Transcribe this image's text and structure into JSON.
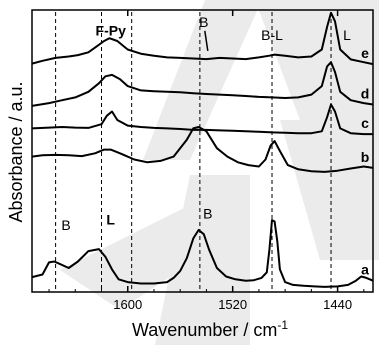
{
  "chart_data": {
    "type": "line",
    "xlabel": "Wavenumber / cm",
    "xlabel_sup": "-1",
    "ylabel": "Absorbance / a.u.",
    "xlim": [
      1673,
      1413
    ],
    "x_reversed": true,
    "xticks": [
      {
        "value": 1600,
        "label": "1600"
      },
      {
        "value": 1520,
        "label": "1520"
      },
      {
        "value": 1440,
        "label": "1440"
      }
    ],
    "reference_lines": [
      {
        "x": 1655,
        "label": ""
      },
      {
        "x": 1620,
        "label": ""
      },
      {
        "x": 1597,
        "label": ""
      },
      {
        "x": 1545,
        "label": ""
      },
      {
        "x": 1490,
        "label": "B-L"
      },
      {
        "x": 1445,
        "label": "L"
      }
    ],
    "annotations": [
      {
        "text": "F-Py",
        "x": 1613,
        "level": 0.91,
        "bold": true
      },
      {
        "text": "B",
        "x": 1542,
        "level": 0.94,
        "bold": false,
        "arrow": true
      },
      {
        "text": "B",
        "x": 1647,
        "level": 0.22,
        "bold": false
      },
      {
        "text": "L",
        "x": 1613,
        "level": 0.24,
        "bold": true
      },
      {
        "text": "B",
        "x": 1539,
        "level": 0.26,
        "bold": false
      }
    ],
    "series": [
      {
        "name": "a",
        "x": [
          1673,
          1665,
          1660,
          1656,
          1652,
          1645,
          1638,
          1630,
          1622,
          1617,
          1612,
          1607,
          1600,
          1590,
          1580,
          1570,
          1565,
          1560,
          1555,
          1550,
          1546,
          1542,
          1538,
          1532,
          1525,
          1518,
          1510,
          1504,
          1498,
          1494,
          1492,
          1490,
          1488,
          1486,
          1484,
          1480,
          1474,
          1466,
          1458,
          1450,
          1440,
          1432,
          1426,
          1422,
          1418,
          1413
        ],
        "y": [
          0.053,
          0.062,
          0.105,
          0.108,
          0.1,
          0.085,
          0.108,
          0.145,
          0.152,
          0.125,
          0.08,
          0.045,
          0.035,
          0.03,
          0.03,
          0.035,
          0.05,
          0.075,
          0.12,
          0.19,
          0.22,
          0.205,
          0.15,
          0.085,
          0.055,
          0.045,
          0.04,
          0.042,
          0.05,
          0.07,
          0.15,
          0.255,
          0.25,
          0.18,
          0.08,
          0.035,
          0.025,
          0.022,
          0.02,
          0.018,
          0.02,
          0.025,
          0.04,
          0.055,
          0.05,
          0.04
        ],
        "label": "a"
      },
      {
        "name": "b",
        "x": [
          1673,
          1665,
          1655,
          1645,
          1635,
          1625,
          1618,
          1613,
          1605,
          1595,
          1585,
          1575,
          1565,
          1555,
          1550,
          1546,
          1540,
          1532,
          1524,
          1516,
          1508,
          1500,
          1495,
          1491,
          1488,
          1484,
          1478,
          1470,
          1460,
          1450,
          1440,
          1430,
          1420,
          1413
        ],
        "y": [
          0.48,
          0.485,
          0.486,
          0.485,
          0.482,
          0.492,
          0.505,
          0.505,
          0.49,
          0.47,
          0.46,
          0.465,
          0.48,
          0.54,
          0.58,
          0.585,
          0.57,
          0.51,
          0.48,
          0.46,
          0.45,
          0.445,
          0.47,
          0.52,
          0.535,
          0.5,
          0.45,
          0.435,
          0.428,
          0.426,
          0.43,
          0.438,
          0.445,
          0.44
        ],
        "label": "b"
      },
      {
        "name": "c",
        "x": [
          1673,
          1660,
          1650,
          1640,
          1630,
          1620,
          1616,
          1612,
          1608,
          1600,
          1590,
          1580,
          1570,
          1560,
          1550,
          1540,
          1530,
          1520,
          1510,
          1500,
          1490,
          1480,
          1470,
          1460,
          1452,
          1448,
          1445,
          1442,
          1438,
          1430,
          1420,
          1413
        ],
        "y": [
          0.58,
          0.583,
          0.585,
          0.583,
          0.582,
          0.595,
          0.625,
          0.64,
          0.61,
          0.59,
          0.585,
          0.582,
          0.58,
          0.578,
          0.575,
          0.575,
          0.573,
          0.572,
          0.57,
          0.568,
          0.566,
          0.565,
          0.563,
          0.563,
          0.57,
          0.62,
          0.665,
          0.64,
          0.58,
          0.563,
          0.56,
          0.56
        ],
        "label": "c"
      },
      {
        "name": "d",
        "x": [
          1673,
          1660,
          1650,
          1640,
          1630,
          1622,
          1617,
          1612,
          1606,
          1600,
          1590,
          1580,
          1570,
          1560,
          1550,
          1540,
          1530,
          1520,
          1510,
          1500,
          1490,
          1480,
          1470,
          1460,
          1452,
          1448,
          1445,
          1442,
          1438,
          1430,
          1420,
          1413
        ],
        "y": [
          0.66,
          0.67,
          0.68,
          0.69,
          0.71,
          0.74,
          0.765,
          0.77,
          0.755,
          0.73,
          0.715,
          0.712,
          0.71,
          0.708,
          0.705,
          0.702,
          0.7,
          0.698,
          0.695,
          0.692,
          0.69,
          0.688,
          0.69,
          0.7,
          0.73,
          0.8,
          0.815,
          0.78,
          0.71,
          0.68,
          0.67,
          0.665
        ],
        "label": "d"
      },
      {
        "name": "e",
        "x": [
          1673,
          1665,
          1655,
          1645,
          1638,
          1630,
          1624,
          1618,
          1614,
          1608,
          1600,
          1590,
          1580,
          1570,
          1560,
          1550,
          1540,
          1530,
          1520,
          1510,
          1500,
          1492,
          1488,
          1480,
          1470,
          1460,
          1452,
          1448,
          1445,
          1442,
          1438,
          1430,
          1420,
          1413
        ],
        "y": [
          0.81,
          0.82,
          0.83,
          0.835,
          0.84,
          0.85,
          0.87,
          0.89,
          0.9,
          0.89,
          0.86,
          0.845,
          0.838,
          0.832,
          0.83,
          0.828,
          0.826,
          0.83,
          0.828,
          0.826,
          0.832,
          0.838,
          0.842,
          0.838,
          0.832,
          0.835,
          0.86,
          0.94,
          0.99,
          0.96,
          0.86,
          0.825,
          0.815,
          0.808
        ],
        "label": "e"
      }
    ]
  }
}
